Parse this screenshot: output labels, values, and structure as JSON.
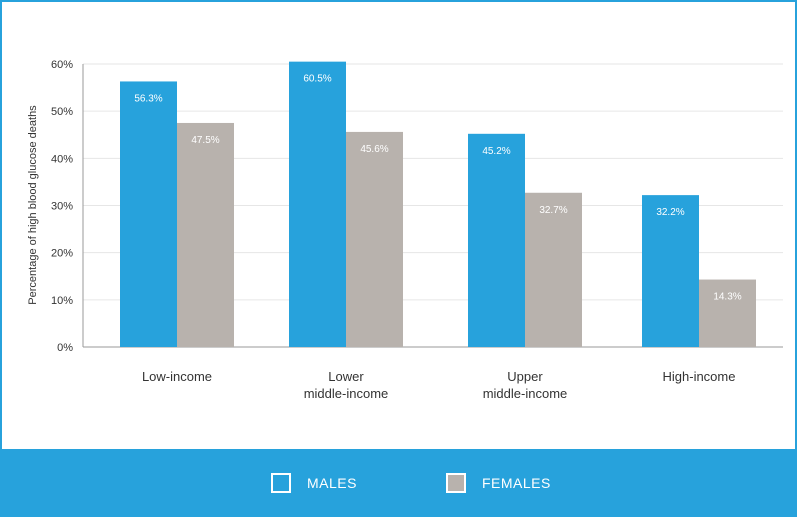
{
  "colors": {
    "males": "#27a2dc",
    "females": "#b8b2ad",
    "frame": "#27a2dc",
    "gridline": "#e6e6e6",
    "axis": "#9a9a9a"
  },
  "chart_data": {
    "type": "bar",
    "title": "",
    "xlabel": "",
    "ylabel": "Percentage of high blood glucose deaths",
    "ylim": [
      0,
      60
    ],
    "yticks": [
      "0%",
      "10%",
      "20%",
      "30%",
      "40%",
      "50%",
      "60%"
    ],
    "grid": true,
    "legend_position": "bottom",
    "categories": [
      [
        "Low-income"
      ],
      [
        "Lower",
        "middle-income"
      ],
      [
        "Upper",
        "middle-income"
      ],
      [
        "High-income"
      ]
    ],
    "series": [
      {
        "name": "MALES",
        "values": [
          56.3,
          60.5,
          45.2,
          32.2
        ],
        "labels": [
          "56.3%",
          "60.5%",
          "45.2%",
          "32.2%"
        ]
      },
      {
        "name": "FEMALES",
        "values": [
          47.5,
          45.6,
          32.7,
          14.3
        ],
        "labels": [
          "47.5%",
          "45.6%",
          "32.7%",
          "14.3%"
        ]
      }
    ]
  }
}
